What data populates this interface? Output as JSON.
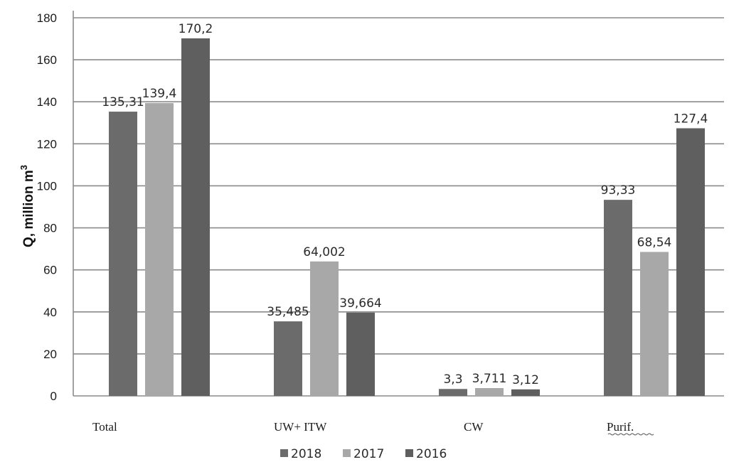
{
  "chart_data": {
    "type": "bar",
    "categories": [
      "Total",
      "UW+ ITW",
      "CW",
      "Purif."
    ],
    "series": [
      {
        "name": "2018",
        "values": [
          135.31,
          35.485,
          3.3,
          93.33
        ],
        "labels": [
          "135,31",
          "35,485",
          "3,3",
          "93,33"
        ],
        "color": "#6b6b6b"
      },
      {
        "name": "2017",
        "values": [
          139.4,
          64.002,
          3.711,
          68.54
        ],
        "labels": [
          "139,4",
          "64,002",
          "3,711",
          "68,54"
        ],
        "color": "#a8a8a8"
      },
      {
        "name": "2016",
        "values": [
          170.2,
          39.664,
          3.12,
          127.4
        ],
        "labels": [
          "170,2",
          "39,664",
          "3,12",
          "127,4"
        ],
        "color": "#5f5f5f"
      }
    ],
    "ylabel": "Q, million m",
    "ylabel_superscript": "3",
    "ylim": [
      0,
      180
    ],
    "yticks": [
      "0",
      "20",
      "40",
      "60",
      "80",
      "100",
      "120",
      "140",
      "160",
      "180"
    ],
    "grid": true,
    "legend_position": "bottom"
  }
}
